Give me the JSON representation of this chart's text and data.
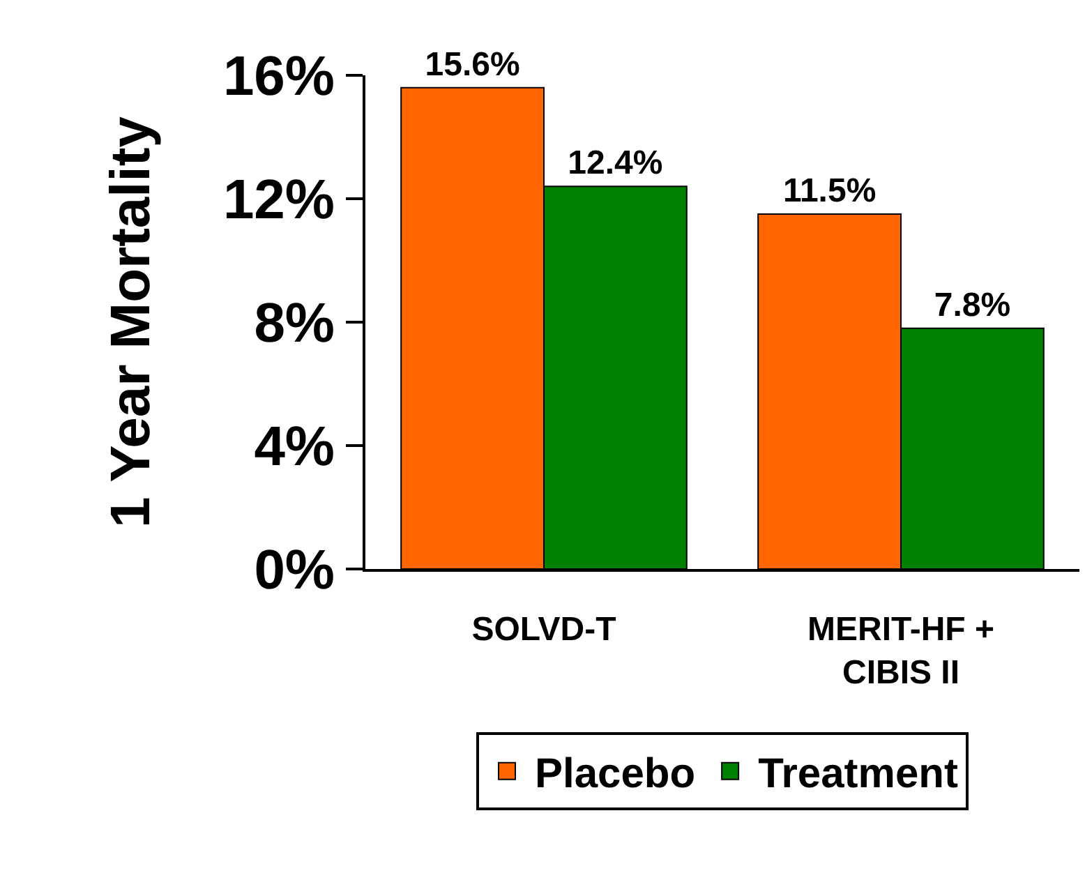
{
  "chart_data": {
    "type": "bar",
    "ylabel": "1 Year Mortality",
    "categories": [
      "SOLVD-T",
      "MERIT-HF + CIBIS II"
    ],
    "series": [
      {
        "name": "Placebo",
        "color": "#ff6600",
        "values": [
          15.6,
          11.5
        ],
        "value_labels": [
          "15.6%",
          "11.5%"
        ]
      },
      {
        "name": "Treatment",
        "color": "#008000",
        "values": [
          12.4,
          7.8
        ],
        "value_labels": [
          "12.4%",
          "7.8%"
        ]
      }
    ],
    "ylim": [
      0,
      16
    ],
    "yticks": [
      {
        "value": 0,
        "label": "0%"
      },
      {
        "value": 4,
        "label": "4%"
      },
      {
        "value": 8,
        "label": "8%"
      },
      {
        "value": 12,
        "label": "12%"
      },
      {
        "value": 16,
        "label": "16%"
      }
    ],
    "legend": "bottom"
  }
}
